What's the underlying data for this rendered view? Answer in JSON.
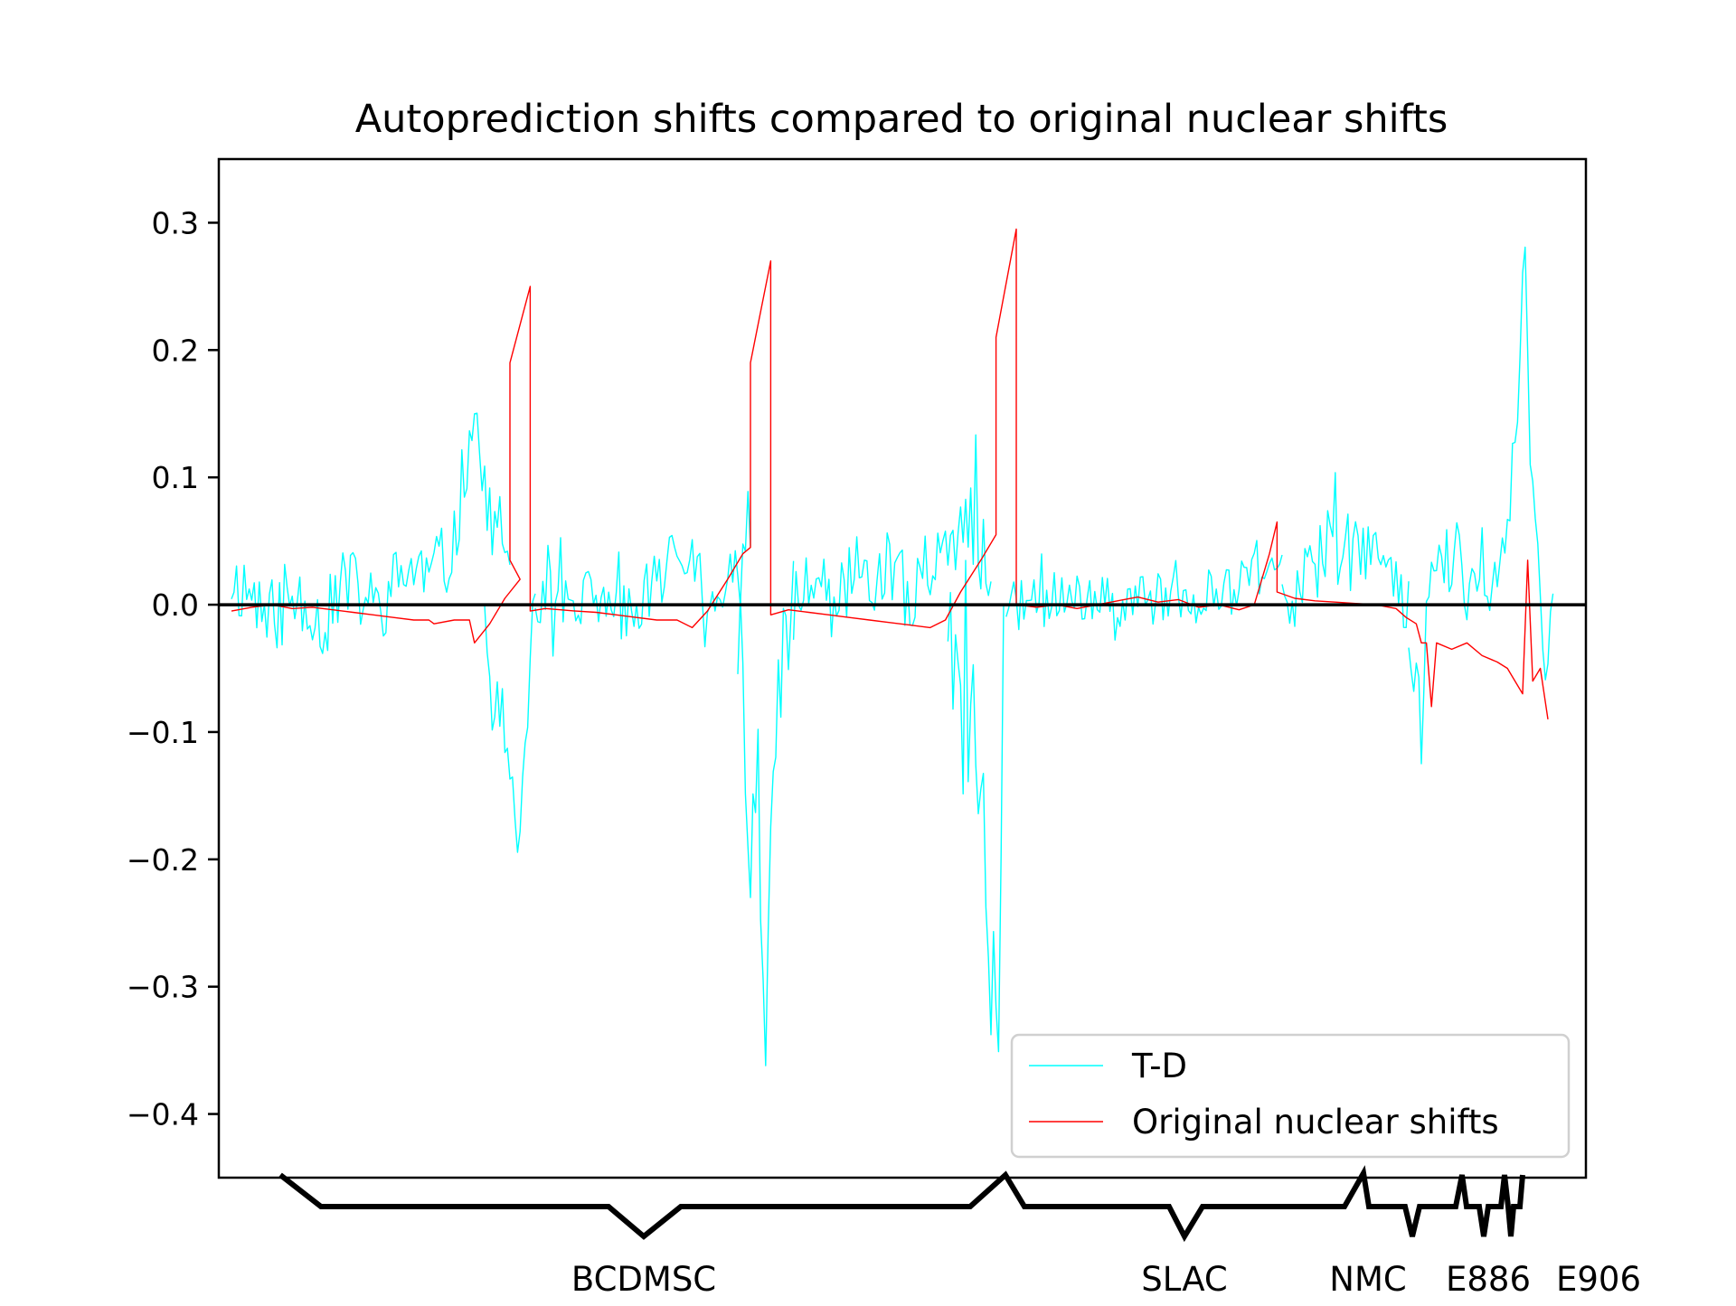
{
  "chart_data": {
    "type": "line",
    "title": "Autoprediction shifts compared to original nuclear shifts",
    "xlabel": "",
    "ylabel": "",
    "ylim": [
      -0.45,
      0.35
    ],
    "yticks": [
      0.3,
      0.2,
      0.1,
      0.0,
      -0.1,
      -0.2,
      -0.3,
      -0.4
    ],
    "ytick_labels": [
      "0.3",
      "0.2",
      "0.1",
      "0.0",
      "−0.1",
      "−0.2",
      "−0.3",
      "−0.4"
    ],
    "xlim": [
      -5,
      535
    ],
    "grid": false,
    "legend_position": "lower right",
    "zero_line": {
      "y": 0.0,
      "color": "#000000"
    },
    "series": [
      {
        "name": "T-D",
        "color": "#00ffff",
        "segments": [
          {
            "x_start": 0,
            "x_end": 110,
            "anchors": [
              [
                0,
                0.02
              ],
              [
                8,
                0.01
              ],
              [
                15,
                -0.01
              ],
              [
                22,
                0.0
              ],
              [
                30,
                0.01
              ],
              [
                36,
                -0.02
              ],
              [
                44,
                0.02
              ],
              [
                50,
                0.01
              ],
              [
                58,
                -0.005
              ],
              [
                66,
                0.02
              ],
              [
                72,
                0.03
              ],
              [
                80,
                0.02
              ],
              [
                88,
                0.05
              ],
              [
                93,
                0.12
              ],
              [
                96,
                0.16
              ],
              [
                100,
                0.08
              ],
              [
                105,
                0.06
              ],
              [
                108,
                0.03
              ]
            ],
            "amp": 0.03,
            "seed": 11
          },
          {
            "x_start": 100,
            "x_end": 120,
            "anchors": [
              [
                100,
                0.02
              ],
              [
                103,
                -0.08
              ],
              [
                106,
                -0.03
              ],
              [
                108,
                -0.15
              ],
              [
                110,
                -0.1
              ],
              [
                113,
                -0.2
              ],
              [
                115,
                -0.15
              ],
              [
                118,
                -0.05
              ],
              [
                120,
                0.0
              ]
            ],
            "amp": 0.04,
            "seed": 21
          },
          {
            "x_start": 120,
            "x_end": 205,
            "anchors": [
              [
                120,
                0.01
              ],
              [
                135,
                0.0
              ],
              [
                150,
                0.01
              ],
              [
                160,
                0.0
              ],
              [
                170,
                0.02
              ],
              [
                180,
                0.05
              ],
              [
                186,
                0.02
              ],
              [
                192,
                0.0
              ],
              [
                196,
                0.03
              ],
              [
                200,
                0.04
              ]
            ],
            "amp": 0.025,
            "seed": 31
          },
          {
            "x_start": 200,
            "x_end": 222,
            "anchors": [
              [
                200,
                0.0
              ],
              [
                203,
                -0.1
              ],
              [
                205,
                -0.22
              ],
              [
                207,
                -0.15
              ],
              [
                209,
                -0.26
              ],
              [
                211,
                -0.4
              ],
              [
                213,
                -0.18
              ],
              [
                216,
                -0.08
              ],
              [
                219,
                -0.04
              ],
              [
                222,
                0.0
              ]
            ],
            "amp": 0.05,
            "seed": 41
          },
          {
            "x_start": 222,
            "x_end": 300,
            "anchors": [
              [
                222,
                0.01
              ],
              [
                235,
                0.0
              ],
              [
                245,
                0.02
              ],
              [
                255,
                0.03
              ],
              [
                265,
                0.01
              ],
              [
                275,
                0.02
              ],
              [
                285,
                0.03
              ],
              [
                292,
                0.07
              ],
              [
                297,
                0.04
              ],
              [
                300,
                0.0
              ]
            ],
            "amp": 0.035,
            "seed": 51
          },
          {
            "x_start": 283,
            "x_end": 305,
            "anchors": [
              [
                283,
                0.0
              ],
              [
                286,
                -0.04
              ],
              [
                290,
                -0.08
              ],
              [
                294,
                -0.1
              ],
              [
                298,
                -0.2
              ],
              [
                301,
                -0.3
              ],
              [
                303,
                -0.4
              ],
              [
                305,
                -0.05
              ]
            ],
            "amp": 0.06,
            "seed": 61
          },
          {
            "x_start": 306,
            "x_end": 415,
            "anchors": [
              [
                306,
                0.0
              ],
              [
                320,
                0.0
              ],
              [
                335,
                0.005
              ],
              [
                350,
                0.0
              ],
              [
                365,
                0.01
              ],
              [
                380,
                0.0
              ],
              [
                395,
                0.01
              ],
              [
                405,
                0.03
              ],
              [
                412,
                0.02
              ],
              [
                415,
                0.05
              ]
            ],
            "amp": 0.02,
            "seed": 71
          },
          {
            "x_start": 415,
            "x_end": 465,
            "anchors": [
              [
                415,
                0.03
              ],
              [
                420,
                -0.02
              ],
              [
                424,
                0.04
              ],
              [
                428,
                0.03
              ],
              [
                435,
                0.05
              ],
              [
                440,
                0.04
              ],
              [
                445,
                0.05
              ],
              [
                452,
                0.03
              ],
              [
                458,
                0.02
              ],
              [
                463,
                0.01
              ],
              [
                465,
                -0.01
              ]
            ],
            "amp": 0.03,
            "seed": 81
          },
          {
            "x_start": 465,
            "x_end": 522,
            "anchors": [
              [
                465,
                -0.02
              ],
              [
                468,
                -0.05
              ],
              [
                470,
                -0.1
              ],
              [
                474,
                0.03
              ],
              [
                480,
                0.04
              ],
              [
                486,
                0.03
              ],
              [
                490,
                0.02
              ],
              [
                494,
                0.04
              ],
              [
                498,
                0.02
              ],
              [
                504,
                0.06
              ],
              [
                508,
                0.15
              ],
              [
                511,
                0.31
              ],
              [
                513,
                0.12
              ],
              [
                516,
                0.02
              ],
              [
                519,
                -0.05
              ],
              [
                522,
                0.03
              ]
            ],
            "amp": 0.03,
            "seed": 91
          }
        ]
      },
      {
        "name": "Original nuclear shifts",
        "color": "#ff0000",
        "points": [
          [
            0,
            -0.005
          ],
          [
            8,
            -0.002
          ],
          [
            16,
            0.0
          ],
          [
            24,
            -0.003
          ],
          [
            32,
            -0.002
          ],
          [
            40,
            -0.004
          ],
          [
            48,
            -0.006
          ],
          [
            56,
            -0.008
          ],
          [
            64,
            -0.01
          ],
          [
            72,
            -0.012
          ],
          [
            78,
            -0.012
          ],
          [
            80,
            -0.015
          ],
          [
            88,
            -0.012
          ],
          [
            94,
            -0.012
          ],
          [
            96,
            -0.03
          ],
          [
            102,
            -0.015
          ],
          [
            108,
            0.005
          ],
          [
            114,
            0.02
          ],
          [
            110,
            0.035
          ],
          [
            110,
            0.19
          ],
          [
            118,
            0.25
          ],
          [
            118,
            -0.005
          ],
          [
            124,
            -0.003
          ],
          [
            130,
            -0.004
          ],
          [
            136,
            -0.005
          ],
          [
            144,
            -0.006
          ],
          [
            152,
            -0.008
          ],
          [
            160,
            -0.01
          ],
          [
            168,
            -0.012
          ],
          [
            176,
            -0.012
          ],
          [
            182,
            -0.018
          ],
          [
            188,
            -0.005
          ],
          [
            196,
            0.02
          ],
          [
            202,
            0.04
          ],
          [
            205,
            0.045
          ],
          [
            205,
            0.19
          ],
          [
            213,
            0.27
          ],
          [
            213,
            -0.008
          ],
          [
            220,
            -0.004
          ],
          [
            228,
            -0.006
          ],
          [
            236,
            -0.008
          ],
          [
            244,
            -0.01
          ],
          [
            252,
            -0.012
          ],
          [
            260,
            -0.014
          ],
          [
            268,
            -0.016
          ],
          [
            276,
            -0.018
          ],
          [
            282,
            -0.012
          ],
          [
            288,
            0.01
          ],
          [
            296,
            0.035
          ],
          [
            302,
            0.055
          ],
          [
            302,
            0.21
          ],
          [
            310,
            0.295
          ],
          [
            310,
            0.0
          ],
          [
            318,
            -0.002
          ],
          [
            326,
            0.0
          ],
          [
            334,
            -0.003
          ],
          [
            342,
            0.0
          ],
          [
            350,
            0.003
          ],
          [
            358,
            0.006
          ],
          [
            366,
            0.002
          ],
          [
            374,
            0.004
          ],
          [
            382,
            -0.002
          ],
          [
            390,
            0.0
          ],
          [
            398,
            -0.004
          ],
          [
            404,
            0.0
          ],
          [
            410,
            0.04
          ],
          [
            413,
            0.065
          ],
          [
            413,
            0.01
          ],
          [
            420,
            0.005
          ],
          [
            428,
            0.003
          ],
          [
            436,
            0.002
          ],
          [
            444,
            0.001
          ],
          [
            452,
            0.0
          ],
          [
            460,
            -0.003
          ],
          [
            464,
            -0.01
          ],
          [
            468,
            -0.015
          ],
          [
            470,
            -0.03
          ],
          [
            472,
            -0.03
          ],
          [
            474,
            -0.08
          ],
          [
            476,
            -0.03
          ],
          [
            482,
            -0.035
          ],
          [
            488,
            -0.03
          ],
          [
            494,
            -0.04
          ],
          [
            500,
            -0.045
          ],
          [
            504,
            -0.05
          ],
          [
            507,
            -0.06
          ],
          [
            510,
            -0.07
          ],
          [
            512,
            0.035
          ],
          [
            514,
            -0.06
          ],
          [
            517,
            -0.05
          ],
          [
            520,
            -0.09
          ]
        ]
      }
    ],
    "group_labels": [
      "BCDMSC",
      "SLAC",
      "NMC",
      "E886",
      "E906"
    ]
  }
}
